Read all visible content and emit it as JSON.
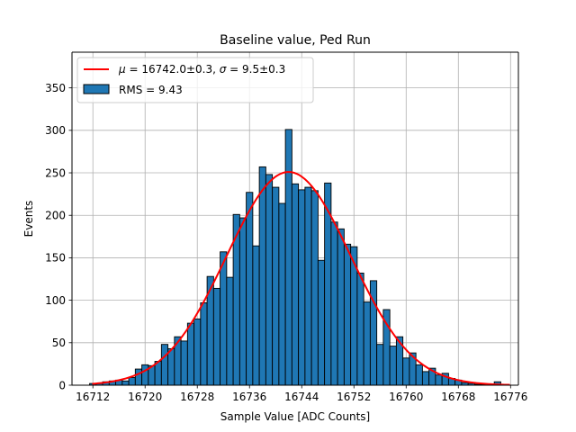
{
  "chart_data": {
    "type": "bar",
    "title": "Baseline value, Ped Run",
    "xlabel": "Sample Value [ADC Counts]",
    "ylabel": "Events",
    "xlim": [
      16708.8,
      16777.2
    ],
    "ylim": [
      0,
      392
    ],
    "xticks": [
      16712,
      16720,
      16728,
      16736,
      16744,
      16752,
      16760,
      16768,
      16776
    ],
    "yticks": [
      0,
      50,
      100,
      150,
      200,
      250,
      300,
      350
    ],
    "grid": true,
    "legend_position": "top-left",
    "bin_width": 1,
    "bins": [
      {
        "x": 16712,
        "y": 2
      },
      {
        "x": 16713,
        "y": 2
      },
      {
        "x": 16714,
        "y": 4
      },
      {
        "x": 16715,
        "y": 5
      },
      {
        "x": 16716,
        "y": 6
      },
      {
        "x": 16717,
        "y": 5
      },
      {
        "x": 16718,
        "y": 9
      },
      {
        "x": 16719,
        "y": 19
      },
      {
        "x": 16720,
        "y": 24
      },
      {
        "x": 16721,
        "y": 23
      },
      {
        "x": 16722,
        "y": 28
      },
      {
        "x": 16723,
        "y": 48
      },
      {
        "x": 16724,
        "y": 43
      },
      {
        "x": 16725,
        "y": 57
      },
      {
        "x": 16726,
        "y": 52
      },
      {
        "x": 16727,
        "y": 73
      },
      {
        "x": 16728,
        "y": 78
      },
      {
        "x": 16729,
        "y": 97
      },
      {
        "x": 16730,
        "y": 128
      },
      {
        "x": 16731,
        "y": 114
      },
      {
        "x": 16732,
        "y": 157
      },
      {
        "x": 16733,
        "y": 127
      },
      {
        "x": 16734,
        "y": 201
      },
      {
        "x": 16735,
        "y": 197
      },
      {
        "x": 16736,
        "y": 227
      },
      {
        "x": 16737,
        "y": 164
      },
      {
        "x": 16738,
        "y": 257
      },
      {
        "x": 16739,
        "y": 248
      },
      {
        "x": 16740,
        "y": 233
      },
      {
        "x": 16741,
        "y": 214
      },
      {
        "x": 16742,
        "y": 301
      },
      {
        "x": 16743,
        "y": 237
      },
      {
        "x": 16744,
        "y": 230
      },
      {
        "x": 16745,
        "y": 233
      },
      {
        "x": 16746,
        "y": 229
      },
      {
        "x": 16747,
        "y": 147
      },
      {
        "x": 16748,
        "y": 238
      },
      {
        "x": 16749,
        "y": 192
      },
      {
        "x": 16750,
        "y": 184
      },
      {
        "x": 16751,
        "y": 166
      },
      {
        "x": 16752,
        "y": 163
      },
      {
        "x": 16753,
        "y": 132
      },
      {
        "x": 16754,
        "y": 98
      },
      {
        "x": 16755,
        "y": 123
      },
      {
        "x": 16756,
        "y": 48
      },
      {
        "x": 16757,
        "y": 89
      },
      {
        "x": 16758,
        "y": 46
      },
      {
        "x": 16759,
        "y": 57
      },
      {
        "x": 16760,
        "y": 32
      },
      {
        "x": 16761,
        "y": 38
      },
      {
        "x": 16762,
        "y": 24
      },
      {
        "x": 16763,
        "y": 16
      },
      {
        "x": 16764,
        "y": 20
      },
      {
        "x": 16765,
        "y": 12
      },
      {
        "x": 16766,
        "y": 14
      },
      {
        "x": 16767,
        "y": 8
      },
      {
        "x": 16768,
        "y": 6
      },
      {
        "x": 16769,
        "y": 3
      },
      {
        "x": 16770,
        "y": 2
      },
      {
        "x": 16771,
        "y": 1
      },
      {
        "x": 16772,
        "y": 1
      },
      {
        "x": 16773,
        "y": 0
      },
      {
        "x": 16774,
        "y": 4
      },
      {
        "x": 16775,
        "y": 1
      }
    ],
    "fit": {
      "type": "gaussian",
      "mu": 16742.0,
      "sigma": 9.5,
      "amplitude": 251,
      "x_range": [
        16711.9,
        16775.9
      ]
    },
    "series": [
      {
        "name": "RMS = 9.43",
        "kind": "histogram",
        "color": "#1f77b4",
        "edgecolor": "#000000"
      },
      {
        "name": "$\\mu = 16742.0 \\pm 0.3$, $\\sigma = 9.5 \\pm 0.3$",
        "kind": "fit-line",
        "color": "#ff0000"
      }
    ],
    "legend": {
      "fit_label_parts": [
        "μ",
        " = 16742.0±0.3, ",
        "σ",
        " = 9.5±0.3"
      ],
      "histogram_label": "RMS = 9.43"
    }
  }
}
